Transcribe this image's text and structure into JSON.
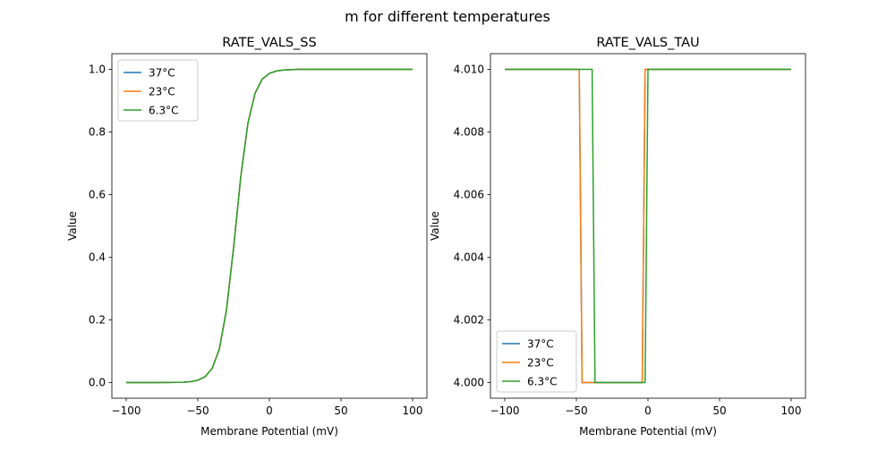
{
  "chart_data": {
    "suptitle": "m for different temperatures",
    "panels": [
      {
        "type": "line",
        "title": "RATE_VALS_SS",
        "xlabel": "Membrane Potential (mV)",
        "ylabel": "Value",
        "xlim": [
          -110,
          110
        ],
        "ylim": [
          -0.05,
          1.05
        ],
        "xticks": [
          -100,
          -50,
          0,
          50,
          100
        ],
        "xtick_labels": [
          "−100",
          "−50",
          "0",
          "50",
          "100"
        ],
        "yticks": [
          0.0,
          0.2,
          0.4,
          0.6,
          0.8,
          1.0
        ],
        "ytick_labels": [
          "0.0",
          "0.2",
          "0.4",
          "0.6",
          "0.8",
          "1.0"
        ],
        "legend": "top-left",
        "series": [
          {
            "name": "37°C",
            "color": "#1f77b4",
            "x": [
              -100,
              -90,
              -80,
              -70,
              -60,
              -55,
              -50,
              -45,
              -40,
              -35,
              -30,
              -25,
              -20,
              -15,
              -10,
              -5,
              0,
              5,
              10,
              20,
              30,
              50,
              100
            ],
            "y": [
              0,
              0,
              0.0001,
              0.0002,
              0.0012,
              0.003,
              0.0073,
              0.0183,
              0.045,
              0.106,
              0.231,
              0.431,
              0.657,
              0.828,
              0.924,
              0.969,
              0.987,
              0.995,
              0.998,
              1.0,
              1.0,
              1.0,
              1.0
            ]
          },
          {
            "name": "23°C",
            "color": "#ff7f0e",
            "x": [
              -100,
              -90,
              -80,
              -70,
              -60,
              -55,
              -50,
              -45,
              -40,
              -35,
              -30,
              -25,
              -20,
              -15,
              -10,
              -5,
              0,
              5,
              10,
              20,
              30,
              50,
              100
            ],
            "y": [
              0,
              0,
              0.0001,
              0.0002,
              0.0012,
              0.003,
              0.0073,
              0.0183,
              0.045,
              0.106,
              0.231,
              0.431,
              0.657,
              0.828,
              0.924,
              0.969,
              0.987,
              0.995,
              0.998,
              1.0,
              1.0,
              1.0,
              1.0
            ]
          },
          {
            "name": "6.3°C",
            "color": "#2ca02c",
            "x": [
              -100,
              -90,
              -80,
              -70,
              -60,
              -55,
              -50,
              -45,
              -40,
              -35,
              -30,
              -25,
              -20,
              -15,
              -10,
              -5,
              0,
              5,
              10,
              20,
              30,
              50,
              100
            ],
            "y": [
              0,
              0,
              0.0001,
              0.0002,
              0.0012,
              0.003,
              0.0073,
              0.0183,
              0.045,
              0.106,
              0.231,
              0.431,
              0.657,
              0.828,
              0.924,
              0.969,
              0.987,
              0.995,
              0.998,
              1.0,
              1.0,
              1.0,
              1.0
            ]
          }
        ]
      },
      {
        "type": "line",
        "title": "RATE_VALS_TAU",
        "xlabel": "Membrane Potential (mV)",
        "ylabel": "Value",
        "xlim": [
          -110,
          110
        ],
        "ylim": [
          3.9995,
          4.0105
        ],
        "xticks": [
          -100,
          -50,
          0,
          50,
          100
        ],
        "xtick_labels": [
          "−100",
          "−50",
          "0",
          "50",
          "100"
        ],
        "yticks": [
          4.0,
          4.002,
          4.004,
          4.006,
          4.008,
          4.01
        ],
        "ytick_labels": [
          "4.000",
          "4.002",
          "4.004",
          "4.006",
          "4.008",
          "4.010"
        ],
        "legend": "bottom-left",
        "series": [
          {
            "name": "37°C",
            "color": "#1f77b4",
            "x": [
              -100,
              -48,
              -46,
              -4,
              -2,
              100
            ],
            "y": [
              4.01,
              4.01,
              4.0,
              4.0,
              4.01,
              4.01
            ]
          },
          {
            "name": "23°C",
            "color": "#ff7f0e",
            "x": [
              -100,
              -48,
              -46,
              -4,
              -2,
              100
            ],
            "y": [
              4.01,
              4.01,
              4.0,
              4.0,
              4.01,
              4.01
            ]
          },
          {
            "name": "6.3°C",
            "color": "#2ca02c",
            "x": [
              -100,
              -39,
              -37,
              -2,
              0,
              100
            ],
            "y": [
              4.01,
              4.01,
              4.0,
              4.0,
              4.01,
              4.01
            ]
          }
        ]
      }
    ]
  }
}
